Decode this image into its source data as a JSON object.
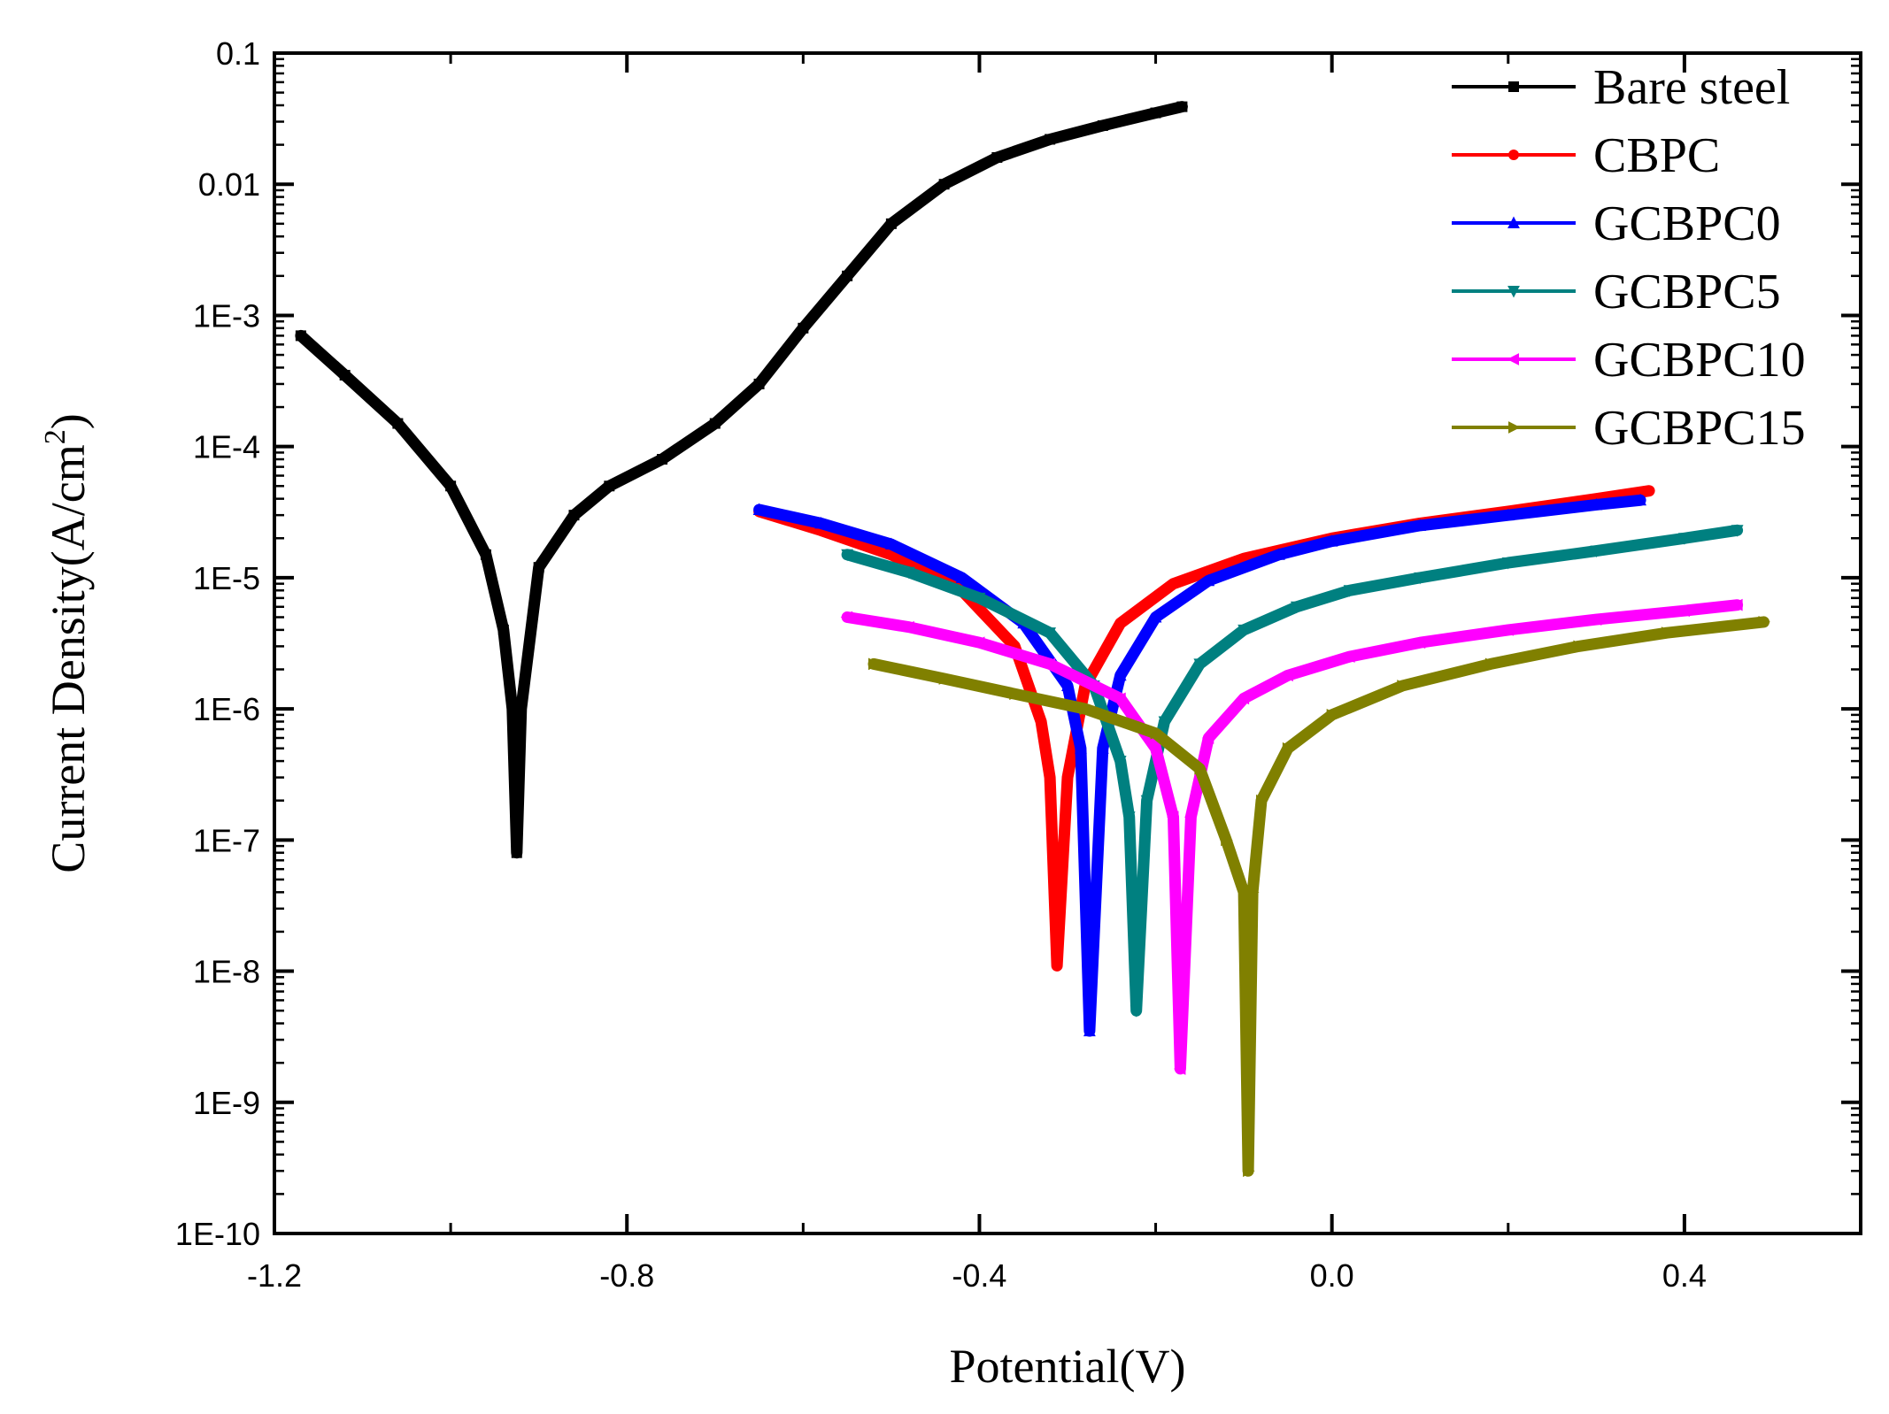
{
  "chart_data": {
    "type": "line",
    "xlabel": "Potential(V)",
    "ylabel_main": "Current Density(A/cm",
    "ylabel_sup": "2",
    "ylabel_close": ")",
    "x_scale": "linear",
    "y_scale": "log",
    "xlim": [
      -1.2,
      0.6
    ],
    "ylim": [
      1e-10,
      0.1
    ],
    "x_ticks": [
      -1.2,
      -0.8,
      -0.4,
      0.0,
      0.4
    ],
    "x_tick_labels": [
      "-1.2",
      "-0.8",
      "-0.4",
      "0.0",
      "0.4"
    ],
    "y_ticks": [
      1e-10,
      1e-09,
      1e-08,
      1e-07,
      1e-06,
      1e-05,
      0.0001,
      0.001,
      0.01,
      0.1
    ],
    "y_tick_labels": [
      "1E-10",
      "1E-9",
      "1E-8",
      "1E-7",
      "1E-6",
      "1E-5",
      "1E-4",
      "1E-3",
      "0.01",
      "0.1"
    ],
    "grid": false,
    "legend_position": "top-right",
    "series": [
      {
        "name": "Bare steel",
        "color": "#000000",
        "marker": "square",
        "x": [
          -1.17,
          -1.12,
          -1.06,
          -1.0,
          -0.96,
          -0.94,
          -0.93,
          -0.925,
          -0.92,
          -0.9,
          -0.86,
          -0.82,
          -0.76,
          -0.7,
          -0.65,
          -0.6,
          -0.55,
          -0.5,
          -0.44,
          -0.38,
          -0.32,
          -0.26,
          -0.2,
          -0.17
        ],
        "y": [
          0.0007,
          0.00035,
          0.00015,
          5e-05,
          1.5e-05,
          4e-06,
          1e-06,
          8e-08,
          1e-06,
          1.2e-05,
          3e-05,
          5e-05,
          8e-05,
          0.00015,
          0.0003,
          0.0008,
          0.002,
          0.005,
          0.01,
          0.016,
          0.022,
          0.028,
          0.035,
          0.039
        ]
      },
      {
        "name": "CBPC",
        "color": "#ff0000",
        "marker": "circle",
        "x": [
          -0.65,
          -0.58,
          -0.5,
          -0.42,
          -0.36,
          -0.33,
          -0.32,
          -0.312,
          -0.3,
          -0.28,
          -0.24,
          -0.18,
          -0.1,
          0.0,
          0.1,
          0.2,
          0.3,
          0.36
        ],
        "y": [
          3.2e-05,
          2.3e-05,
          1.5e-05,
          8e-06,
          3e-06,
          8e-07,
          3e-07,
          1.1e-08,
          3e-07,
          1.5e-06,
          4.5e-06,
          9e-06,
          1.4e-05,
          2e-05,
          2.6e-05,
          3.2e-05,
          4e-05,
          4.6e-05
        ]
      },
      {
        "name": "GCBPC0",
        "color": "#0000ff",
        "marker": "triangle-up",
        "x": [
          -0.65,
          -0.58,
          -0.5,
          -0.42,
          -0.35,
          -0.3,
          -0.285,
          -0.275,
          -0.26,
          -0.24,
          -0.2,
          -0.14,
          -0.06,
          0.0,
          0.1,
          0.2,
          0.3,
          0.35
        ],
        "y": [
          3.3e-05,
          2.6e-05,
          1.8e-05,
          1e-05,
          4.5e-06,
          1.5e-06,
          5e-07,
          3.5e-09,
          5e-07,
          1.8e-06,
          5e-06,
          9.5e-06,
          1.5e-05,
          1.9e-05,
          2.5e-05,
          3e-05,
          3.6e-05,
          3.9e-05
        ]
      },
      {
        "name": "GCBPC5",
        "color": "#008080",
        "marker": "triangle-down",
        "x": [
          -0.55,
          -0.48,
          -0.4,
          -0.32,
          -0.27,
          -0.24,
          -0.23,
          -0.222,
          -0.21,
          -0.19,
          -0.15,
          -0.1,
          -0.04,
          0.02,
          0.1,
          0.2,
          0.3,
          0.4,
          0.46
        ],
        "y": [
          1.5e-05,
          1.1e-05,
          7e-06,
          3.8e-06,
          1.5e-06,
          4e-07,
          1.5e-07,
          5e-09,
          2e-07,
          8e-07,
          2.2e-06,
          4e-06,
          6e-06,
          8e-06,
          1e-05,
          1.3e-05,
          1.6e-05,
          2e-05,
          2.3e-05
        ]
      },
      {
        "name": "GCBPC10",
        "color": "#ff00ff",
        "marker": "triangle-left",
        "x": [
          -0.55,
          -0.48,
          -0.4,
          -0.32,
          -0.24,
          -0.2,
          -0.18,
          -0.172,
          -0.16,
          -0.14,
          -0.1,
          -0.05,
          0.02,
          0.1,
          0.2,
          0.3,
          0.4,
          0.46
        ],
        "y": [
          5e-06,
          4.2e-06,
          3.2e-06,
          2.2e-06,
          1.2e-06,
          5e-07,
          1.5e-07,
          1.8e-09,
          1.5e-07,
          6e-07,
          1.2e-06,
          1.8e-06,
          2.5e-06,
          3.2e-06,
          4e-06,
          4.8e-06,
          5.6e-06,
          6.2e-06
        ]
      },
      {
        "name": "GCBPC15",
        "color": "#808000",
        "marker": "triangle-right",
        "x": [
          -0.52,
          -0.44,
          -0.36,
          -0.28,
          -0.2,
          -0.15,
          -0.12,
          -0.1,
          -0.095,
          -0.09,
          -0.08,
          -0.05,
          0.0,
          0.08,
          0.18,
          0.28,
          0.38,
          0.49
        ],
        "y": [
          2.2e-06,
          1.7e-06,
          1.3e-06,
          1e-06,
          6.5e-07,
          3.5e-07,
          1e-07,
          4e-08,
          3e-10,
          4e-08,
          2e-07,
          5e-07,
          9e-07,
          1.5e-06,
          2.2e-06,
          3e-06,
          3.8e-06,
          4.6e-06
        ]
      }
    ]
  }
}
